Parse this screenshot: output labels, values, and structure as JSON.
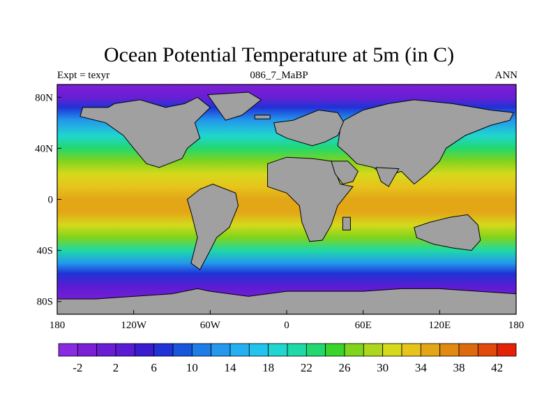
{
  "title": "Ocean Potential Temperature at 5m (in C)",
  "left_string": "Expt = texyr",
  "center_string": "086_7_MaBP",
  "right_string": "ANN",
  "map": {
    "projection": "cylindrical-equidistant",
    "lon_range": [
      -180,
      180
    ],
    "lat_range": [
      -90,
      90
    ],
    "land_color": "#a0a0a0",
    "border_color": "#000000",
    "x_ticks": [
      {
        "lon": -180,
        "label": "180"
      },
      {
        "lon": -120,
        "label": "120W"
      },
      {
        "lon": -60,
        "label": "60W"
      },
      {
        "lon": 0,
        "label": "0"
      },
      {
        "lon": 60,
        "label": "60E"
      },
      {
        "lon": 120,
        "label": "120E"
      },
      {
        "lon": 180,
        "label": "180"
      }
    ],
    "y_ticks": [
      {
        "lat": 80,
        "label": "80N"
      },
      {
        "lat": 40,
        "label": "40N"
      },
      {
        "lat": 0,
        "label": "0"
      },
      {
        "lat": -40,
        "label": "40S"
      },
      {
        "lat": -80,
        "label": "80S"
      }
    ],
    "temperature_bands_by_latitude": [
      {
        "lat": 90,
        "value": -2
      },
      {
        "lat": 80,
        "value": 0
      },
      {
        "lat": 72,
        "value": 6
      },
      {
        "lat": 62,
        "value": 12
      },
      {
        "lat": 50,
        "value": 18
      },
      {
        "lat": 40,
        "value": 22
      },
      {
        "lat": 30,
        "value": 26
      },
      {
        "lat": 20,
        "value": 30
      },
      {
        "lat": 10,
        "value": 33
      },
      {
        "lat": 0,
        "value": 35
      },
      {
        "lat": -10,
        "value": 34
      },
      {
        "lat": -20,
        "value": 31
      },
      {
        "lat": -30,
        "value": 26
      },
      {
        "lat": -40,
        "value": 20
      },
      {
        "lat": -50,
        "value": 12
      },
      {
        "lat": -58,
        "value": 6
      },
      {
        "lat": -68,
        "value": 2
      },
      {
        "lat": -80,
        "value": -2
      },
      {
        "lat": -90,
        "value": -2
      }
    ],
    "land_polygons_lonlat": [
      {
        "name": "north-america",
        "points": [
          [
            -135,
            75
          ],
          [
            -115,
            78
          ],
          [
            -95,
            72
          ],
          [
            -80,
            75
          ],
          [
            -70,
            80
          ],
          [
            -60,
            72
          ],
          [
            -72,
            60
          ],
          [
            -68,
            48
          ],
          [
            -78,
            40
          ],
          [
            -82,
            32
          ],
          [
            -100,
            25
          ],
          [
            -110,
            28
          ],
          [
            -120,
            40
          ],
          [
            -128,
            50
          ],
          [
            -142,
            60
          ],
          [
            -162,
            65
          ],
          [
            -160,
            72
          ],
          [
            -140,
            72
          ]
        ]
      },
      {
        "name": "greenland",
        "points": [
          [
            -62,
            82
          ],
          [
            -30,
            84
          ],
          [
            -20,
            78
          ],
          [
            -35,
            66
          ],
          [
            -48,
            62
          ],
          [
            -55,
            72
          ]
        ]
      },
      {
        "name": "south-america",
        "points": [
          [
            -58,
            12
          ],
          [
            -40,
            5
          ],
          [
            -38,
            -5
          ],
          [
            -45,
            -22
          ],
          [
            -55,
            -30
          ],
          [
            -60,
            -40
          ],
          [
            -68,
            -55
          ],
          [
            -75,
            -50
          ],
          [
            -70,
            -30
          ],
          [
            -75,
            -10
          ],
          [
            -78,
            0
          ],
          [
            -68,
            8
          ]
        ]
      },
      {
        "name": "europe",
        "points": [
          [
            -10,
            60
          ],
          [
            5,
            62
          ],
          [
            25,
            70
          ],
          [
            40,
            68
          ],
          [
            45,
            60
          ],
          [
            40,
            50
          ],
          [
            30,
            45
          ],
          [
            20,
            42
          ],
          [
            10,
            45
          ],
          [
            0,
            48
          ],
          [
            -8,
            52
          ]
        ]
      },
      {
        "name": "africa",
        "points": [
          [
            -15,
            28
          ],
          [
            0,
            33
          ],
          [
            20,
            32
          ],
          [
            35,
            30
          ],
          [
            42,
            12
          ],
          [
            52,
            10
          ],
          [
            40,
            -5
          ],
          [
            35,
            -20
          ],
          [
            28,
            -32
          ],
          [
            18,
            -33
          ],
          [
            12,
            -18
          ],
          [
            10,
            -5
          ],
          [
            0,
            5
          ],
          [
            -15,
            10
          ]
        ]
      },
      {
        "name": "eurasia",
        "points": [
          [
            45,
            62
          ],
          [
            60,
            70
          ],
          [
            80,
            75
          ],
          [
            100,
            78
          ],
          [
            130,
            75
          ],
          [
            160,
            70
          ],
          [
            178,
            68
          ],
          [
            175,
            62
          ],
          [
            160,
            58
          ],
          [
            140,
            50
          ],
          [
            125,
            40
          ],
          [
            120,
            30
          ],
          [
            110,
            20
          ],
          [
            100,
            12
          ],
          [
            90,
            22
          ],
          [
            78,
            18
          ],
          [
            68,
            25
          ],
          [
            55,
            28
          ],
          [
            48,
            35
          ],
          [
            40,
            42
          ],
          [
            42,
            55
          ]
        ]
      },
      {
        "name": "arabia",
        "points": [
          [
            35,
            30
          ],
          [
            48,
            30
          ],
          [
            56,
            22
          ],
          [
            52,
            14
          ],
          [
            44,
            12
          ],
          [
            38,
            20
          ]
        ]
      },
      {
        "name": "india",
        "points": [
          [
            70,
            25
          ],
          [
            88,
            24
          ],
          [
            80,
            10
          ],
          [
            74,
            14
          ]
        ]
      },
      {
        "name": "australia",
        "points": [
          [
            100,
            -22
          ],
          [
            112,
            -18
          ],
          [
            128,
            -14
          ],
          [
            142,
            -12
          ],
          [
            150,
            -20
          ],
          [
            152,
            -32
          ],
          [
            145,
            -40
          ],
          [
            130,
            -38
          ],
          [
            115,
            -35
          ],
          [
            102,
            -30
          ]
        ]
      },
      {
        "name": "antarctica",
        "points": [
          [
            -180,
            -90
          ],
          [
            180,
            -90
          ],
          [
            180,
            -74
          ],
          [
            150,
            -72
          ],
          [
            120,
            -70
          ],
          [
            90,
            -70
          ],
          [
            60,
            -72
          ],
          [
            30,
            -72
          ],
          [
            0,
            -72
          ],
          [
            -30,
            -76
          ],
          [
            -60,
            -72
          ],
          [
            -70,
            -70
          ],
          [
            -90,
            -74
          ],
          [
            -120,
            -76
          ],
          [
            -150,
            -78
          ],
          [
            -180,
            -78
          ]
        ]
      },
      {
        "name": "madagascar",
        "points": [
          [
            44,
            -14
          ],
          [
            50,
            -14
          ],
          [
            50,
            -24
          ],
          [
            44,
            -24
          ]
        ]
      },
      {
        "name": "iceland",
        "points": [
          [
            -25,
            66
          ],
          [
            -13,
            66
          ],
          [
            -13,
            63
          ],
          [
            -25,
            63
          ]
        ]
      }
    ]
  },
  "colorbar": {
    "colors": [
      "#8a2be2",
      "#7b1fd6",
      "#6a1ed4",
      "#5a1cd2",
      "#3a1bd0",
      "#1f33d6",
      "#1856dc",
      "#1f7ee6",
      "#2398ec",
      "#24b0f0",
      "#22c4ee",
      "#20d6d0",
      "#1fd9a6",
      "#23d86f",
      "#3bd42b",
      "#7fd41c",
      "#aed61c",
      "#d6d91c",
      "#e6c41c",
      "#e3a617",
      "#e08a12",
      "#dd6b0d",
      "#e04a0a",
      "#e52208"
    ],
    "labels": [
      "-2",
      "2",
      "6",
      "10",
      "14",
      "18",
      "22",
      "26",
      "30",
      "34",
      "38",
      "42"
    ]
  }
}
